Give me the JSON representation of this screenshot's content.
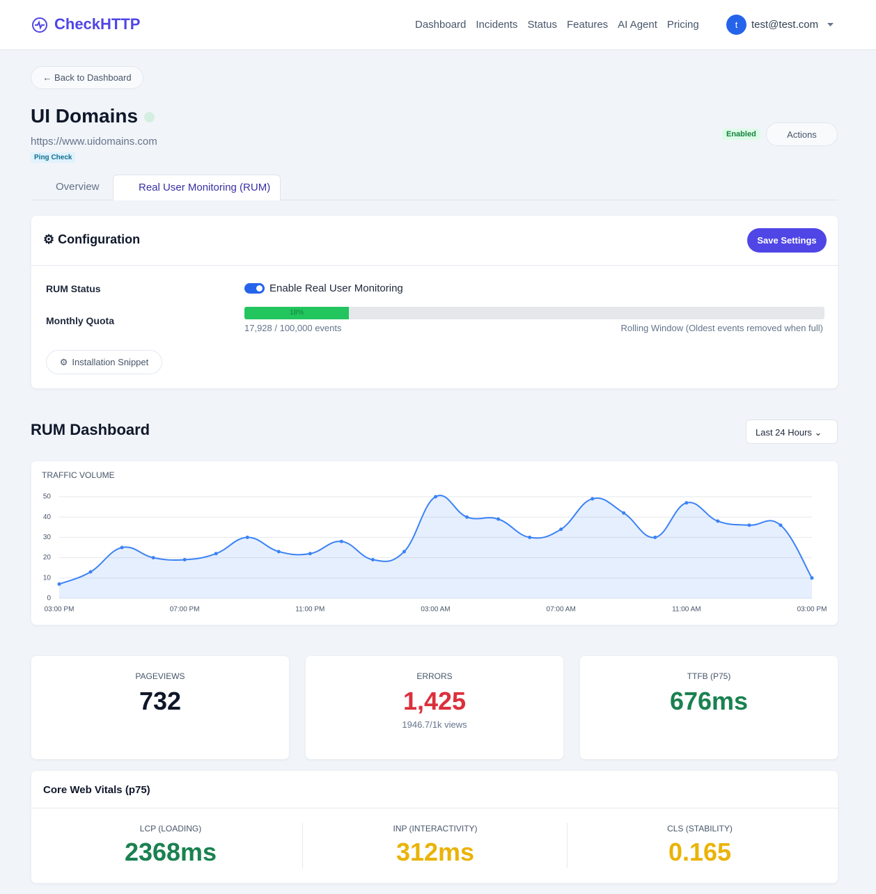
{
  "nav": {
    "brand": "CheckHTTP",
    "links": [
      "Dashboard",
      "Incidents",
      "Status",
      "Features",
      "AI Agent",
      "Pricing"
    ],
    "avatar": "t",
    "email": "test@test.com"
  },
  "back": "← Back to Dashboard",
  "monitor": {
    "name": "UI Domains",
    "url": "https://www.uidomains.com",
    "badge": "Ping Check",
    "status": "Enabled",
    "actions": "Actions"
  },
  "tabs": [
    "Overview",
    "Real User Monitoring (RUM)"
  ],
  "config": {
    "title": "Configuration",
    "save": "Save Settings",
    "rum_status_label": "RUM Status",
    "toggle_label": "Enable Real User Monitoring",
    "quota_label": "Monthly Quota",
    "quota_percent": 18,
    "quota_percent_label": "18%",
    "quota_text": "17,928 / 100,000 events",
    "quota_note": "Rolling Window (Oldest events removed when full)",
    "snippet": "Installation Snippet"
  },
  "dashboard": {
    "title": "RUM Dashboard",
    "range": "Last 24 Hours"
  },
  "chart_data": {
    "type": "line",
    "title": "TRAFFIC VOLUME",
    "categories": [
      "03:00 PM",
      null,
      null,
      null,
      "07:00 PM",
      null,
      null,
      null,
      "11:00 PM",
      null,
      null,
      null,
      "03:00 AM",
      null,
      null,
      null,
      "07:00 AM",
      null,
      null,
      null,
      "11:00 AM",
      null,
      null,
      null,
      "03:00 PM"
    ],
    "values": [
      7,
      13,
      25,
      20,
      19,
      22,
      30,
      23,
      22,
      28,
      19,
      23,
      50,
      40,
      39,
      30,
      34,
      49,
      42,
      30,
      47,
      38,
      36,
      36,
      10
    ],
    "color": "#3b82f6",
    "ylim": [
      0,
      50
    ],
    "yticks": [
      0,
      10,
      20,
      30,
      40,
      50
    ],
    "grid": true
  },
  "metrics": [
    {
      "label": "PAGEVIEWS",
      "value": "732"
    },
    {
      "label": "ERRORS",
      "value": "1,425",
      "sub": "1946.7/1k views"
    },
    {
      "label": "TTFB (P75)",
      "value": "676ms"
    }
  ],
  "vitals": {
    "title": "Core Web Vitals (p75)",
    "items": [
      {
        "label": "LCP (LOADING)",
        "value": "2368ms"
      },
      {
        "label": "INP (INTERACTIVITY)",
        "value": "312ms"
      },
      {
        "label": "CLS (STABILITY)",
        "value": "0.165"
      }
    ]
  }
}
